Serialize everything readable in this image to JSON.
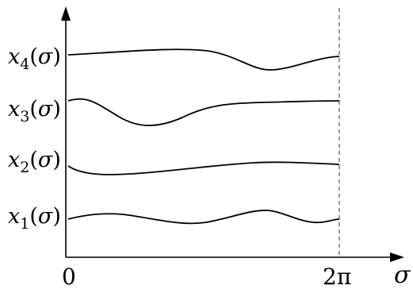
{
  "figure": {
    "curves": [
      {
        "var": "x",
        "sub": "4",
        "arg": "σ"
      },
      {
        "var": "x",
        "sub": "3",
        "arg": "σ"
      },
      {
        "var": "x",
        "sub": "2",
        "arg": "σ"
      },
      {
        "var": "x",
        "sub": "1",
        "arg": "σ"
      }
    ],
    "x_axis": {
      "name": "σ",
      "tick_start": "0",
      "tick_end": "2π"
    }
  }
}
